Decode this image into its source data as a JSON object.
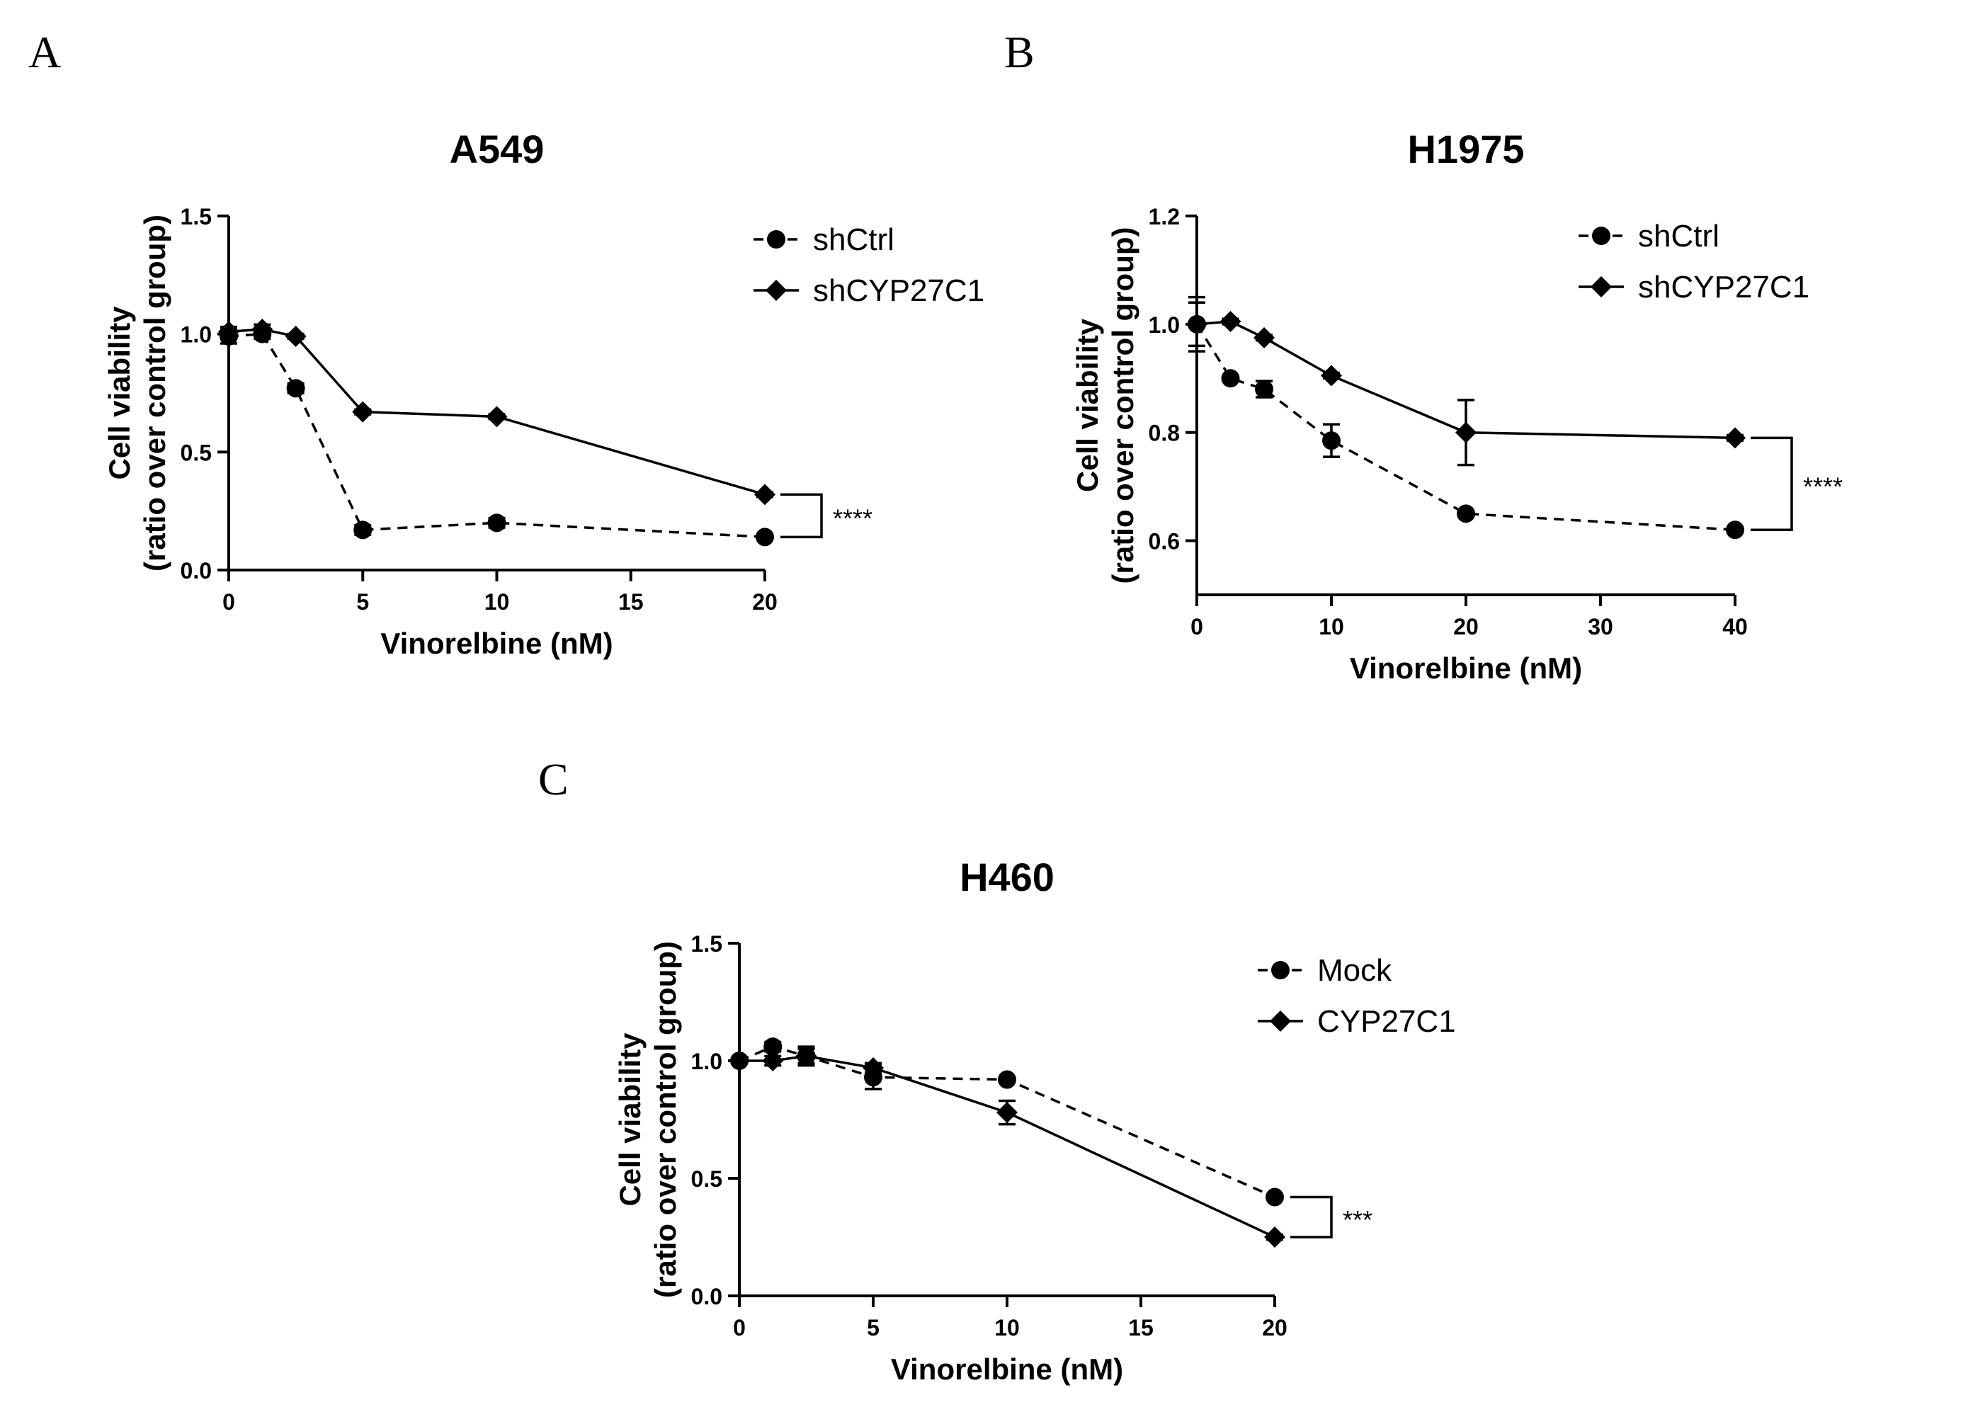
{
  "chart_data": [
    {
      "panel": "A",
      "type": "line",
      "title": "A549",
      "xlabel": "Vinorelbine (nM)",
      "ylabel_line1": "Cell viability",
      "ylabel_line2": "(ratio over control group)",
      "xlim": [
        0,
        20
      ],
      "ylim": [
        0,
        1.5
      ],
      "xticks": [
        "0",
        "5",
        "10",
        "15",
        "20"
      ],
      "yticks": [
        "0.0",
        "0.5",
        "1.0",
        "1.5"
      ],
      "significance": "****",
      "legend_position": "top-right",
      "series": [
        {
          "name": "shCtrl",
          "marker": "circle",
          "line": "dashed",
          "x": [
            0,
            1.25,
            2.5,
            5,
            10,
            20
          ],
          "y": [
            0.99,
            1.0,
            0.77,
            0.17,
            0.2,
            0.14
          ],
          "err": [
            0.03,
            0.02,
            0.02,
            0.02,
            0.02,
            0.01
          ]
        },
        {
          "name": "shCYP27C1",
          "marker": "diamond",
          "line": "solid",
          "x": [
            0,
            1.25,
            2.5,
            5,
            10,
            20
          ],
          "y": [
            1.01,
            1.02,
            0.99,
            0.67,
            0.65,
            0.32
          ],
          "err": [
            0.02,
            0.02,
            0.01,
            0.01,
            0.01,
            0.01
          ]
        }
      ]
    },
    {
      "panel": "B",
      "type": "line",
      "title": "H1975",
      "xlabel": "Vinorelbine (nM)",
      "ylabel_line1": "Cell viability",
      "ylabel_line2": "(ratio over control group)",
      "xlim": [
        0,
        40
      ],
      "ylim": [
        0.5,
        1.2
      ],
      "xticks": [
        "0",
        "10",
        "20",
        "30",
        "40"
      ],
      "yticks": [
        "0.6",
        "0.8",
        "1.0",
        "1.2"
      ],
      "significance": "****",
      "legend_position": "top-right",
      "series": [
        {
          "name": "shCtrl",
          "marker": "circle",
          "line": "dashed",
          "x": [
            0,
            2.5,
            5,
            10,
            20,
            40
          ],
          "y": [
            1.0,
            0.9,
            0.88,
            0.785,
            0.65,
            0.62
          ],
          "err": [
            0.05,
            0.005,
            0.015,
            0.03,
            0.005,
            0.005
          ]
        },
        {
          "name": "shCYP27C1",
          "marker": "diamond",
          "line": "solid",
          "x": [
            0,
            2.5,
            5,
            10,
            20,
            40
          ],
          "y": [
            1.0,
            1.005,
            0.975,
            0.905,
            0.8,
            0.79
          ],
          "err": [
            0.04,
            0.005,
            0.005,
            0.005,
            0.06,
            0.005
          ]
        }
      ]
    },
    {
      "panel": "C",
      "type": "line",
      "title": "H460",
      "xlabel": "Vinorelbine (nM)",
      "ylabel_line1": "Cell viability",
      "ylabel_line2": "(ratio over control group)",
      "xlim": [
        0,
        20
      ],
      "ylim": [
        0,
        1.5
      ],
      "xticks": [
        "0",
        "5",
        "10",
        "15",
        "20"
      ],
      "yticks": [
        "0.0",
        "0.5",
        "1.0",
        "1.5"
      ],
      "significance": "***",
      "legend_position": "top-right",
      "series": [
        {
          "name": "Mock",
          "marker": "circle",
          "line": "dashed",
          "x": [
            0,
            1.25,
            2.5,
            5,
            10,
            20
          ],
          "y": [
            1.0,
            1.06,
            1.02,
            0.93,
            0.92,
            0.42
          ],
          "err": [
            0.01,
            0.02,
            0.04,
            0.05,
            0.01,
            0.01
          ]
        },
        {
          "name": "CYP27C1",
          "marker": "diamond",
          "line": "solid",
          "x": [
            0,
            1.25,
            2.5,
            5,
            10,
            20
          ],
          "y": [
            1.0,
            1.0,
            1.02,
            0.97,
            0.78,
            0.25
          ],
          "err": [
            0.01,
            0.02,
            0.03,
            0.02,
            0.05,
            0.01
          ]
        }
      ]
    }
  ]
}
